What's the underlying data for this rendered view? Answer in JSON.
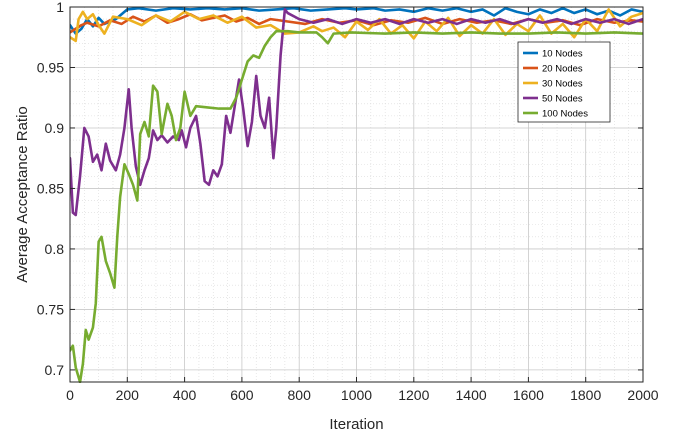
{
  "chart_data": {
    "type": "line",
    "xlabel": "Iteration",
    "ylabel": "Average Acceptance Ratio",
    "xlim": [
      0,
      2000
    ],
    "ylim": [
      0.69,
      1.0
    ],
    "x_ticks": [
      0,
      200,
      400,
      600,
      800,
      1000,
      1200,
      1400,
      1600,
      1800,
      2000
    ],
    "x_tick_labels": [
      "0",
      "200",
      "400",
      "600",
      "800",
      "1000",
      "1200",
      "1400",
      "1600",
      "1800",
      "2000"
    ],
    "y_ticks": [
      0.7,
      0.75,
      0.8,
      0.85,
      0.9,
      0.95,
      1.0
    ],
    "y_tick_labels": [
      "0.7",
      "0.75",
      "0.8",
      "0.85",
      "0.9",
      "0.95",
      "1"
    ],
    "grid": true,
    "minor_grid": true,
    "legend_position": "upper-right",
    "series": [
      {
        "name": "10 Nodes",
        "color": "#0072BD",
        "points": [
          [
            0,
            0.985
          ],
          [
            20,
            0.978
          ],
          [
            40,
            0.982
          ],
          [
            60,
            0.99
          ],
          [
            80,
            0.984
          ],
          [
            100,
            0.991
          ],
          [
            120,
            0.986
          ],
          [
            160,
            0.99
          ],
          [
            200,
            0.998
          ],
          [
            240,
            0.999
          ],
          [
            300,
            0.997
          ],
          [
            360,
            0.999
          ],
          [
            420,
            0.998
          ],
          [
            480,
            0.999
          ],
          [
            540,
            0.998
          ],
          [
            600,
            0.999
          ],
          [
            660,
            0.997
          ],
          [
            720,
            0.998
          ],
          [
            780,
            0.999
          ],
          [
            840,
            0.997
          ],
          [
            900,
            0.998
          ],
          [
            960,
            0.999
          ],
          [
            1000,
            0.998
          ],
          [
            1060,
            0.999
          ],
          [
            1100,
            0.997
          ],
          [
            1150,
            0.998
          ],
          [
            1200,
            0.996
          ],
          [
            1250,
            0.999
          ],
          [
            1300,
            0.997
          ],
          [
            1350,
            0.999
          ],
          [
            1400,
            0.996
          ],
          [
            1440,
            0.998
          ],
          [
            1480,
            0.993
          ],
          [
            1520,
            0.999
          ],
          [
            1560,
            0.996
          ],
          [
            1600,
            0.994
          ],
          [
            1640,
            0.998
          ],
          [
            1680,
            0.995
          ],
          [
            1720,
            0.999
          ],
          [
            1760,
            0.995
          ],
          [
            1800,
            0.998
          ],
          [
            1840,
            0.994
          ],
          [
            1880,
            0.997
          ],
          [
            1920,
            0.993
          ],
          [
            1960,
            0.998
          ],
          [
            2000,
            0.996
          ]
        ]
      },
      {
        "name": "20 Nodes",
        "color": "#D95319",
        "points": [
          [
            0,
            0.979
          ],
          [
            20,
            0.982
          ],
          [
            40,
            0.985
          ],
          [
            60,
            0.987
          ],
          [
            100,
            0.984
          ],
          [
            140,
            0.989
          ],
          [
            180,
            0.986
          ],
          [
            220,
            0.992
          ],
          [
            260,
            0.988
          ],
          [
            300,
            0.993
          ],
          [
            340,
            0.987
          ],
          [
            380,
            0.99
          ],
          [
            420,
            0.994
          ],
          [
            460,
            0.989
          ],
          [
            500,
            0.991
          ],
          [
            540,
            0.993
          ],
          [
            580,
            0.988
          ],
          [
            620,
            0.991
          ],
          [
            660,
            0.986
          ],
          [
            700,
            0.99
          ],
          [
            760,
            0.988
          ],
          [
            820,
            0.986
          ],
          [
            880,
            0.99
          ],
          [
            940,
            0.987
          ],
          [
            1000,
            0.989
          ],
          [
            1060,
            0.985
          ],
          [
            1120,
            0.989
          ],
          [
            1180,
            0.987
          ],
          [
            1240,
            0.991
          ],
          [
            1300,
            0.986
          ],
          [
            1360,
            0.99
          ],
          [
            1420,
            0.987
          ],
          [
            1480,
            0.989
          ],
          [
            1540,
            0.986
          ],
          [
            1600,
            0.99
          ],
          [
            1660,
            0.987
          ],
          [
            1720,
            0.989
          ],
          [
            1780,
            0.985
          ],
          [
            1840,
            0.99
          ],
          [
            1900,
            0.987
          ],
          [
            1960,
            0.989
          ],
          [
            2000,
            0.988
          ]
        ]
      },
      {
        "name": "30 Nodes",
        "color": "#EDB120",
        "points": [
          [
            0,
            0.975
          ],
          [
            20,
            0.972
          ],
          [
            30,
            0.99
          ],
          [
            45,
            0.996
          ],
          [
            60,
            0.99
          ],
          [
            80,
            0.994
          ],
          [
            100,
            0.985
          ],
          [
            120,
            0.978
          ],
          [
            150,
            0.992
          ],
          [
            200,
            0.99
          ],
          [
            250,
            0.985
          ],
          [
            300,
            0.993
          ],
          [
            350,
            0.988
          ],
          [
            400,
            0.996
          ],
          [
            450,
            0.99
          ],
          [
            500,
            0.993
          ],
          [
            550,
            0.987
          ],
          [
            600,
            0.992
          ],
          [
            650,
            0.983
          ],
          [
            700,
            0.985
          ],
          [
            750,
            0.978
          ],
          [
            800,
            0.979
          ],
          [
            850,
            0.984
          ],
          [
            880,
            0.98
          ],
          [
            920,
            0.983
          ],
          [
            960,
            0.975
          ],
          [
            1000,
            0.988
          ],
          [
            1040,
            0.981
          ],
          [
            1080,
            0.99
          ],
          [
            1120,
            0.978
          ],
          [
            1160,
            0.985
          ],
          [
            1200,
            0.974
          ],
          [
            1240,
            0.988
          ],
          [
            1280,
            0.98
          ],
          [
            1320,
            0.991
          ],
          [
            1360,
            0.976
          ],
          [
            1400,
            0.985
          ],
          [
            1440,
            0.978
          ],
          [
            1480,
            0.99
          ],
          [
            1520,
            0.977
          ],
          [
            1560,
            0.986
          ],
          [
            1600,
            0.98
          ],
          [
            1640,
            0.993
          ],
          [
            1680,
            0.978
          ],
          [
            1720,
            0.986
          ],
          [
            1760,
            0.975
          ],
          [
            1800,
            0.99
          ],
          [
            1840,
            0.98
          ],
          [
            1880,
            0.998
          ],
          [
            1920,
            0.984
          ],
          [
            1960,
            0.992
          ],
          [
            2000,
            0.995
          ]
        ]
      },
      {
        "name": "50 Nodes",
        "color": "#7E2F8E",
        "points": [
          [
            0,
            0.875
          ],
          [
            10,
            0.83
          ],
          [
            20,
            0.828
          ],
          [
            35,
            0.86
          ],
          [
            50,
            0.9
          ],
          [
            65,
            0.893
          ],
          [
            80,
            0.872
          ],
          [
            95,
            0.878
          ],
          [
            110,
            0.865
          ],
          [
            125,
            0.887
          ],
          [
            140,
            0.873
          ],
          [
            160,
            0.865
          ],
          [
            175,
            0.878
          ],
          [
            190,
            0.9
          ],
          [
            205,
            0.932
          ],
          [
            215,
            0.9
          ],
          [
            230,
            0.868
          ],
          [
            245,
            0.853
          ],
          [
            260,
            0.865
          ],
          [
            275,
            0.875
          ],
          [
            290,
            0.898
          ],
          [
            305,
            0.89
          ],
          [
            320,
            0.894
          ],
          [
            340,
            0.888
          ],
          [
            360,
            0.893
          ],
          [
            380,
            0.89
          ],
          [
            390,
            0.898
          ],
          [
            405,
            0.884
          ],
          [
            420,
            0.9
          ],
          [
            440,
            0.91
          ],
          [
            455,
            0.887
          ],
          [
            470,
            0.856
          ],
          [
            485,
            0.853
          ],
          [
            500,
            0.865
          ],
          [
            515,
            0.86
          ],
          [
            530,
            0.87
          ],
          [
            545,
            0.91
          ],
          [
            560,
            0.896
          ],
          [
            575,
            0.918
          ],
          [
            590,
            0.94
          ],
          [
            605,
            0.915
          ],
          [
            620,
            0.885
          ],
          [
            635,
            0.905
          ],
          [
            650,
            0.943
          ],
          [
            665,
            0.91
          ],
          [
            680,
            0.9
          ],
          [
            695,
            0.925
          ],
          [
            710,
            0.875
          ],
          [
            720,
            0.9
          ],
          [
            735,
            0.96
          ],
          [
            750,
            0.998
          ],
          [
            760,
            0.995
          ],
          [
            800,
            0.99
          ],
          [
            850,
            0.987
          ],
          [
            900,
            0.99
          ],
          [
            950,
            0.986
          ],
          [
            1000,
            0.99
          ],
          [
            1050,
            0.987
          ],
          [
            1100,
            0.99
          ],
          [
            1150,
            0.986
          ],
          [
            1200,
            0.99
          ],
          [
            1250,
            0.987
          ],
          [
            1300,
            0.99
          ],
          [
            1350,
            0.986
          ],
          [
            1400,
            0.99
          ],
          [
            1450,
            0.987
          ],
          [
            1500,
            0.99
          ],
          [
            1550,
            0.986
          ],
          [
            1600,
            0.99
          ],
          [
            1650,
            0.987
          ],
          [
            1700,
            0.99
          ],
          [
            1750,
            0.986
          ],
          [
            1800,
            0.99
          ],
          [
            1850,
            0.987
          ],
          [
            1900,
            0.99
          ],
          [
            1950,
            0.986
          ],
          [
            2000,
            0.99
          ]
        ]
      },
      {
        "name": "100 Nodes",
        "color": "#77AC30",
        "points": [
          [
            0,
            0.716
          ],
          [
            10,
            0.72
          ],
          [
            20,
            0.702
          ],
          [
            35,
            0.69
          ],
          [
            45,
            0.705
          ],
          [
            55,
            0.733
          ],
          [
            65,
            0.725
          ],
          [
            80,
            0.735
          ],
          [
            90,
            0.755
          ],
          [
            100,
            0.806
          ],
          [
            110,
            0.81
          ],
          [
            125,
            0.79
          ],
          [
            140,
            0.78
          ],
          [
            155,
            0.768
          ],
          [
            165,
            0.81
          ],
          [
            175,
            0.843
          ],
          [
            190,
            0.87
          ],
          [
            205,
            0.862
          ],
          [
            220,
            0.853
          ],
          [
            235,
            0.84
          ],
          [
            245,
            0.895
          ],
          [
            260,
            0.905
          ],
          [
            275,
            0.893
          ],
          [
            290,
            0.935
          ],
          [
            305,
            0.93
          ],
          [
            320,
            0.895
          ],
          [
            340,
            0.92
          ],
          [
            355,
            0.91
          ],
          [
            370,
            0.89
          ],
          [
            385,
            0.9
          ],
          [
            400,
            0.93
          ],
          [
            420,
            0.91
          ],
          [
            440,
            0.918
          ],
          [
            480,
            0.917
          ],
          [
            520,
            0.916
          ],
          [
            560,
            0.916
          ],
          [
            580,
            0.925
          ],
          [
            600,
            0.94
          ],
          [
            620,
            0.955
          ],
          [
            640,
            0.96
          ],
          [
            660,
            0.958
          ],
          [
            680,
            0.968
          ],
          [
            700,
            0.975
          ],
          [
            720,
            0.98
          ],
          [
            760,
            0.98
          ],
          [
            800,
            0.979
          ],
          [
            860,
            0.979
          ],
          [
            880,
            0.975
          ],
          [
            900,
            0.97
          ],
          [
            920,
            0.978
          ],
          [
            980,
            0.979
          ],
          [
            1100,
            0.978
          ],
          [
            1200,
            0.979
          ],
          [
            1300,
            0.978
          ],
          [
            1400,
            0.979
          ],
          [
            1500,
            0.978
          ],
          [
            1600,
            0.978
          ],
          [
            1700,
            0.979
          ],
          [
            1800,
            0.978
          ],
          [
            1900,
            0.979
          ],
          [
            2000,
            0.978
          ]
        ]
      }
    ]
  }
}
